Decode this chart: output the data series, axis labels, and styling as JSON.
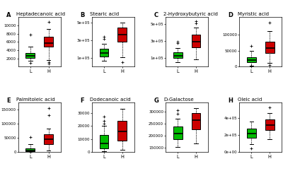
{
  "panels": [
    {
      "label": "A",
      "title": "Heptadecanoic acid",
      "L": {
        "q1": 2200,
        "median": 2700,
        "q3": 3300,
        "whislo": 1400,
        "whishi": 4800,
        "fliers": [
          900,
          7800
        ]
      },
      "H": {
        "q1": 4800,
        "median": 5800,
        "q3": 7200,
        "whislo": 1600,
        "whishi": 9200,
        "fliers": [
          1100,
          700,
          10800
        ]
      },
      "ylim": [
        0,
        12000
      ],
      "yticks": [
        2000,
        4000,
        6000,
        8000,
        10000
      ],
      "ytick_labels": [
        "2000",
        "4000",
        "6000",
        "8000",
        "10000"
      ]
    },
    {
      "label": "B",
      "title": "Stearic acid",
      "L": {
        "q1": 115000,
        "median": 155000,
        "q3": 200000,
        "whislo": 70000,
        "whishi": 260000,
        "fliers": [
          315000,
          340000
        ]
      },
      "H": {
        "q1": 280000,
        "median": 360000,
        "q3": 440000,
        "whislo": 110000,
        "whishi": 500000,
        "fliers": [
          55000
        ]
      },
      "ylim": [
        0,
        560000
      ],
      "yticks": [
        100000,
        300000,
        500000
      ],
      "ytick_labels": [
        "1e+05",
        "3e+05",
        "5e+05"
      ]
    },
    {
      "label": "C",
      "title": "2-Hydroxybutyric acid",
      "L": {
        "q1": 105000,
        "median": 130000,
        "q3": 165000,
        "whislo": 50000,
        "whishi": 220000,
        "fliers": [
          275000,
          295000
        ]
      },
      "H": {
        "q1": 230000,
        "median": 295000,
        "q3": 375000,
        "whislo": 85000,
        "whishi": 460000,
        "fliers": [
          530000,
          510000
        ]
      },
      "ylim": [
        0,
        580000
      ],
      "yticks": [
        100000,
        300000,
        500000
      ],
      "ytick_labels": [
        "1e+05",
        "3e+05",
        "5e+05"
      ]
    },
    {
      "label": "D",
      "title": "Myristic acid",
      "L": {
        "q1": 14000,
        "median": 21000,
        "q3": 30000,
        "whislo": 4000,
        "whishi": 50000,
        "fliers": [
          2000,
          3500,
          65000
        ]
      },
      "H": {
        "q1": 42000,
        "median": 58000,
        "q3": 78000,
        "whislo": 12000,
        "whishi": 112000,
        "fliers": [
          5000,
          137000
        ]
      },
      "ylim": [
        0,
        155000
      ],
      "yticks": [
        0,
        50000,
        100000
      ],
      "ytick_labels": [
        "0",
        "50000",
        "100000"
      ]
    },
    {
      "label": "E",
      "title": "Palmitoleic acid",
      "L": {
        "q1": 3000,
        "median": 7000,
        "q3": 14000,
        "whislo": 500,
        "whishi": 28000,
        "fliers": [
          450,
          320,
          52000
        ]
      },
      "H": {
        "q1": 28000,
        "median": 47000,
        "q3": 63000,
        "whislo": 6000,
        "whishi": 82000,
        "fliers": [
          155000,
          130000
        ]
      },
      "ylim": [
        0,
        175000
      ],
      "yticks": [
        0,
        50000,
        100000,
        150000
      ],
      "ytick_labels": [
        "0",
        "50000",
        "100000",
        "150000"
      ]
    },
    {
      "label": "F",
      "title": "Dodecanoic acid",
      "L": {
        "q1": 3000,
        "median": 6500,
        "q3": 13000,
        "whislo": 500,
        "whishi": 20000,
        "fliers": [
          27000,
          24000,
          22000
        ]
      },
      "H": {
        "q1": 9000,
        "median": 16000,
        "q3": 24000,
        "whislo": 2000,
        "whishi": 33000,
        "fliers": []
      },
      "ylim": [
        0,
        38000
      ],
      "yticks": [
        0,
        10000,
        20000,
        30000
      ],
      "ytick_labels": [
        "0",
        "10000",
        "20000",
        "30000"
      ]
    },
    {
      "label": "G",
      "title": "D-Galactose",
      "L": {
        "q1": 185000,
        "median": 210000,
        "q3": 238000,
        "whislo": 152000,
        "whishi": 272000,
        "fliers": [
          308000,
          292000
        ]
      },
      "H": {
        "q1": 228000,
        "median": 265000,
        "q3": 295000,
        "whislo": 168000,
        "whishi": 315000,
        "fliers": []
      },
      "ylim": [
        130000,
        340000
      ],
      "yticks": [
        150000,
        200000,
        250000,
        300000
      ],
      "ytick_labels": [
        "150000",
        "200000",
        "250000",
        "300000"
      ]
    },
    {
      "label": "H",
      "title": "Oleic acid",
      "L": {
        "q1": 165000,
        "median": 215000,
        "q3": 275000,
        "whislo": 90000,
        "whishi": 360000,
        "fliers": [
          48000
        ]
      },
      "H": {
        "q1": 255000,
        "median": 318000,
        "q3": 382000,
        "whislo": 148000,
        "whishi": 455000,
        "fliers": [
          520000
        ]
      },
      "ylim": [
        0,
        580000
      ],
      "yticks": [
        0,
        200000,
        400000
      ],
      "ytick_labels": [
        "0e+00",
        "2e+05",
        "4e+05"
      ]
    }
  ],
  "green_color": "#00BB00",
  "red_color": "#CC0000",
  "box_width": 0.5,
  "linewidth": 0.7,
  "whisker_lw": 0.6,
  "cap_lw": 0.7,
  "median_lw": 1.2,
  "flier_size": 2.8,
  "title_fontsize": 5.0,
  "label_fontsize": 4.8,
  "tick_fontsize": 4.0,
  "panel_label_fontsize": 6.0
}
